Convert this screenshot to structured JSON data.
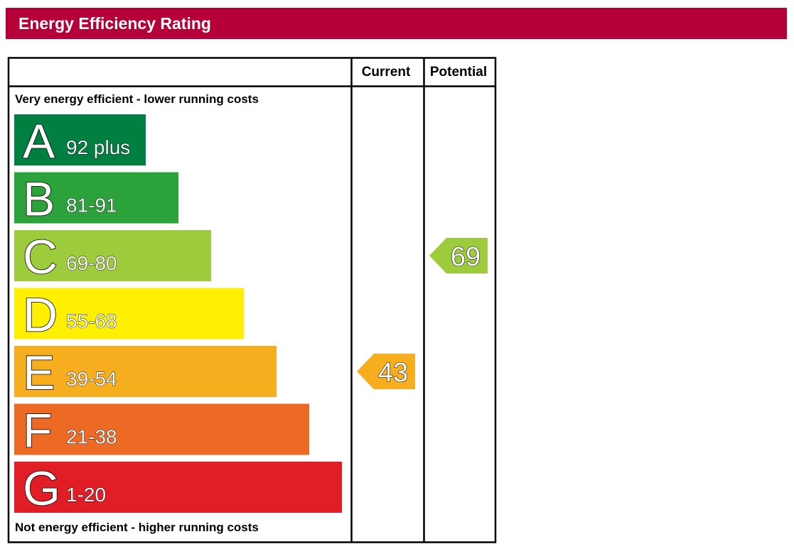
{
  "header": {
    "title": "Energy Efficiency Rating"
  },
  "chart_data": {
    "type": "bar",
    "columns": [
      "Current",
      "Potential"
    ],
    "top_note": "Very energy efficient - lower running costs",
    "bottom_note": "Not energy efficient - higher running costs",
    "bands": [
      {
        "letter": "A",
        "range": "92 plus",
        "color": "#008040"
      },
      {
        "letter": "B",
        "range": "81-91",
        "color": "#2ca23b"
      },
      {
        "letter": "C",
        "range": "69-80",
        "color": "#9ccb3b"
      },
      {
        "letter": "D",
        "range": "55-68",
        "color": "#ffef00"
      },
      {
        "letter": "E",
        "range": "39-54",
        "color": "#f6ad1e"
      },
      {
        "letter": "F",
        "range": "21-38",
        "color": "#ec6a24"
      },
      {
        "letter": "G",
        "range": "1-20",
        "color": "#e11e25"
      }
    ],
    "ratings": [
      {
        "column": "Current",
        "value": 43,
        "band": "E",
        "color": "#f6ad1e"
      },
      {
        "column": "Potential",
        "value": 69,
        "band": "C",
        "color": "#9ccb3b"
      }
    ]
  }
}
